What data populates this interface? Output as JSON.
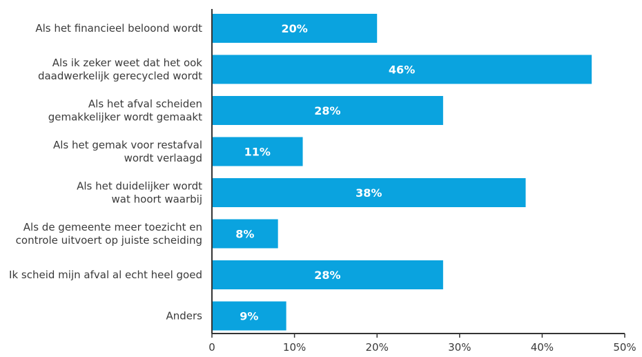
{
  "chart_data": {
    "type": "bar",
    "orientation": "horizontal",
    "categories": [
      [
        "Als het financieel beloond wordt"
      ],
      [
        "Als ik zeker weet dat het ook",
        "daadwerkelijk gerecycled wordt"
      ],
      [
        "Als het afval scheiden",
        "gemakkelijker wordt gemaakt"
      ],
      [
        "Als het gemak voor restafval",
        "wordt verlaagd"
      ],
      [
        "Als het duidelijker wordt",
        "wat hoort waarbij"
      ],
      [
        "Als de gemeente meer toezicht en",
        "controle uitvoert op juiste scheiding"
      ],
      [
        "Ik scheid mijn afval al echt heel goed"
      ],
      [
        "Anders"
      ]
    ],
    "values": [
      20,
      46,
      28,
      11,
      38,
      8,
      28,
      9
    ],
    "data_labels": [
      "20%",
      "46%",
      "28%",
      "11%",
      "38%",
      "8%",
      "28%",
      "9%"
    ],
    "xlim": [
      0,
      50
    ],
    "xticks": [
      0,
      10,
      20,
      30,
      40,
      50
    ],
    "xtick_labels": [
      "0",
      "10%",
      "20%",
      "30%",
      "40%",
      "50%"
    ],
    "title": "",
    "xlabel": "",
    "ylabel": "",
    "grid": false,
    "colors": {
      "bar": "#0aa3df",
      "axis": "#333333",
      "text": "#3a3a3a",
      "label": "#ffffff"
    }
  }
}
